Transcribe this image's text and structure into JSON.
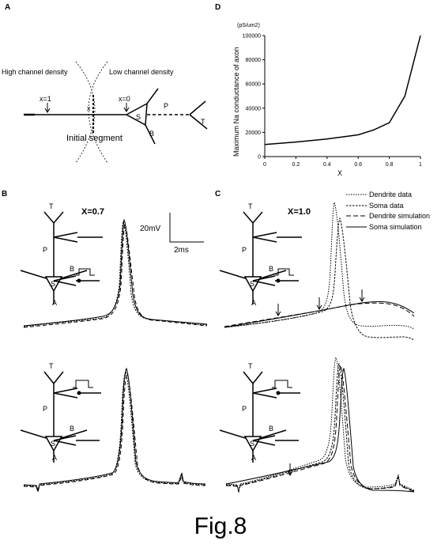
{
  "panels": {
    "a": "A",
    "b": "B",
    "c": "C",
    "d": "D"
  },
  "panel_a": {
    "high_density": "High channel density",
    "low_density": "Low channel density",
    "x1": "x=1",
    "x": "x",
    "x0": "x=0",
    "s": "S",
    "p": "P",
    "b": "B",
    "t": "T",
    "initial_segment": "Initial segment"
  },
  "panel_b": {
    "x_label": "X=0.7",
    "scale_v": "20mV",
    "scale_t": "2ms",
    "neuron": {
      "t": "T",
      "p": "P",
      "b": "B",
      "s": "S",
      "a": "A"
    }
  },
  "panel_c": {
    "x_label": "X=1.0",
    "legend": [
      "Dendrite data",
      "Soma data",
      "Dendrite simulation",
      "Soma simulation"
    ]
  },
  "caption": "Fig.8",
  "chart_data": {
    "type": "line",
    "title": "",
    "xlabel": "X",
    "ylabel": "Maximum Na conductance of axon",
    "unit_label": "(pS/um2)",
    "xlim": [
      0,
      1
    ],
    "ylim": [
      0,
      100000
    ],
    "xticks": [
      "0",
      "0.2",
      "0.4",
      "0.6",
      "0.8",
      "1"
    ],
    "yticks": [
      "0",
      "20000",
      "40000",
      "60000",
      "80000",
      "100000"
    ],
    "x": [
      0,
      0.2,
      0.4,
      0.6,
      0.7,
      0.8,
      0.9,
      1.0
    ],
    "y": [
      10000,
      12000,
      14500,
      18000,
      22000,
      28000,
      50000,
      100000
    ]
  }
}
